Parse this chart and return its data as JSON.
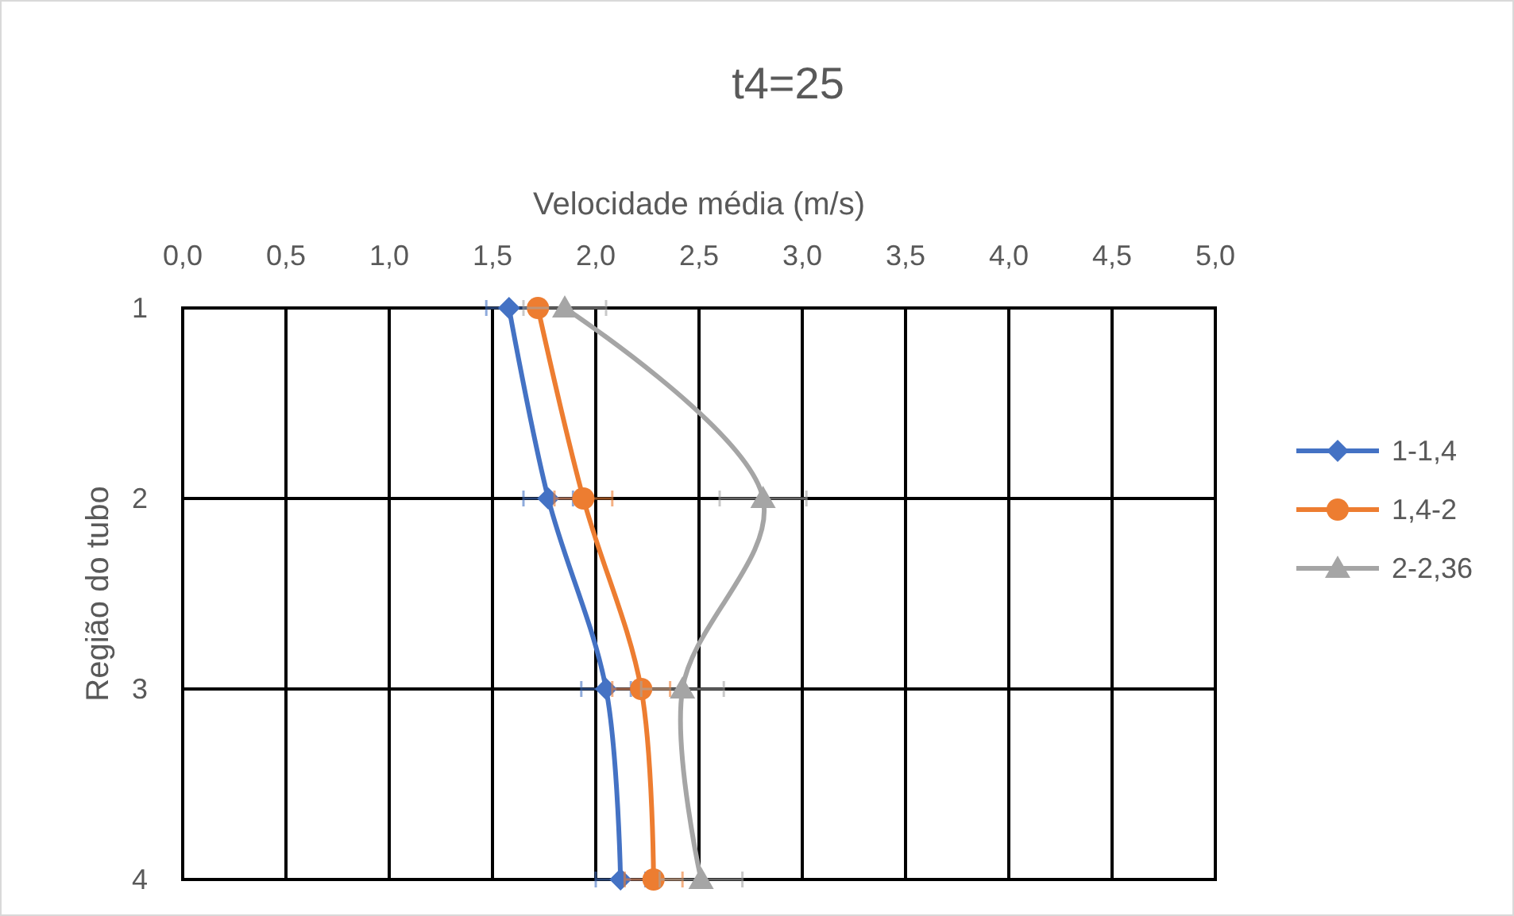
{
  "chart_data": {
    "type": "line",
    "title": "t4=25",
    "xlabel": "Velocidade média (m/s)",
    "ylabel": "Região do tubo",
    "orientation": "horizontal",
    "categories": [
      "1",
      "2",
      "3",
      "4"
    ],
    "xlim": [
      0,
      5
    ],
    "xticks": [
      {
        "value": 0,
        "label": "0,0"
      },
      {
        "value": 0.5,
        "label": "0,5"
      },
      {
        "value": 1,
        "label": "1,0"
      },
      {
        "value": 1.5,
        "label": "1,5"
      },
      {
        "value": 2,
        "label": "2,0"
      },
      {
        "value": 2.5,
        "label": "2,5"
      },
      {
        "value": 3,
        "label": "3,0"
      },
      {
        "value": 3.5,
        "label": "3,5"
      },
      {
        "value": 4,
        "label": "4,0"
      },
      {
        "value": 4.5,
        "label": "4,5"
      },
      {
        "value": 5,
        "label": "5,0"
      }
    ],
    "grid": true,
    "legend": "right",
    "series": [
      {
        "name": "1-1,4",
        "color": "#4472c4",
        "marker": "diamond",
        "values": [
          1.58,
          1.77,
          2.05,
          2.12
        ],
        "errors": [
          0.11,
          0.12,
          0.12,
          0.12
        ]
      },
      {
        "name": "1,4-2",
        "color": "#ed7d31",
        "marker": "circle",
        "values": [
          1.72,
          1.94,
          2.22,
          2.28
        ],
        "errors": [
          null,
          0.14,
          0.14,
          0.14
        ]
      },
      {
        "name": "2-2,36",
        "color": "#a5a5a5",
        "marker": "triangle",
        "values": [
          1.85,
          2.81,
          2.42,
          2.51
        ],
        "errors": [
          0.2,
          0.21,
          0.2,
          0.2
        ]
      }
    ]
  }
}
